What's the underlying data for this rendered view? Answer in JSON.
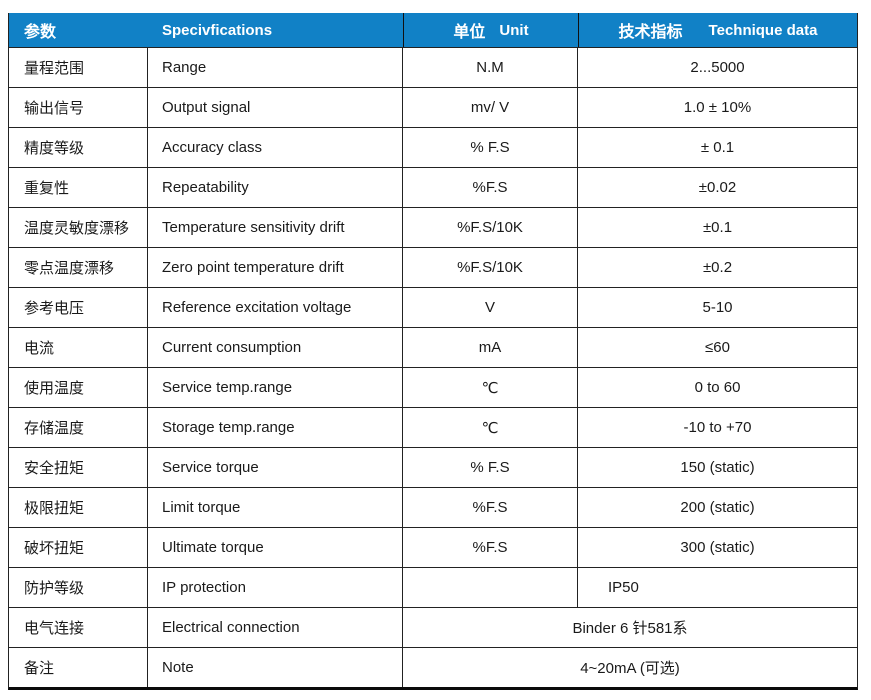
{
  "colors": {
    "header_bg": "#1181C6",
    "header_text": "#ffffff",
    "body_text": "#1a1a1a",
    "border": "#222222"
  },
  "table": {
    "header": {
      "param_cn": "参数",
      "spec_en": "Specivfications",
      "unit_cn": "单位",
      "unit_en": "Unit",
      "tech_cn": "技术指标",
      "tech_en": "Technique data"
    },
    "rows": [
      {
        "param": "量程范围",
        "spec": "Range",
        "unit": "N.M",
        "value": "2...5000"
      },
      {
        "param": "输出信号",
        "spec": "Output signal",
        "unit": "mv/ V",
        "value": "1.0 ± 10%"
      },
      {
        "param": "精度等级",
        "spec": "Accuracy class",
        "unit": "% F.S",
        "value": "± 0.1"
      },
      {
        "param": "重复性",
        "spec": "Repeatability",
        "unit": "%F.S",
        "value": "±0.02"
      },
      {
        "param": "温度灵敏度漂移",
        "spec": "Temperature sensitivity drift",
        "unit": "%F.S/10K",
        "value": "±0.1"
      },
      {
        "param": "零点温度漂移",
        "spec": "Zero point temperature drift",
        "unit": "%F.S/10K",
        "value": "±0.2"
      },
      {
        "param": "参考电压",
        "spec": "Reference excitation voltage",
        "unit": "V",
        "value": "5-10"
      },
      {
        "param": "电流",
        "spec": "Current consumption",
        "unit": "mA",
        "value": "≤60"
      },
      {
        "param": "使用温度",
        "spec": "Service temp.range",
        "unit": "℃",
        "value": "0 to 60"
      },
      {
        "param": "存储温度",
        "spec": "Storage temp.range",
        "unit": "℃",
        "value": "-10 to +70"
      },
      {
        "param": "安全扭矩",
        "spec": "Service torque",
        "unit": "% F.S",
        "value": "150 (static)"
      },
      {
        "param": "极限扭矩",
        "spec": "Limit torque",
        "unit": "%F.S",
        "value": "200 (static)"
      },
      {
        "param": "破坏扭矩",
        "spec": "Ultimate torque",
        "unit": "%F.S",
        "value": "300 (static)"
      },
      {
        "param": "防护等级",
        "spec": "IP protection",
        "unit": "",
        "value": "IP50",
        "value_align": "left"
      },
      {
        "param": "电气连接",
        "spec": "Electrical connection",
        "merged": true,
        "value": "Binder 6 针581系"
      },
      {
        "param": "备注",
        "spec": "Note",
        "merged": true,
        "value": "4~20mA (可选)"
      }
    ]
  }
}
